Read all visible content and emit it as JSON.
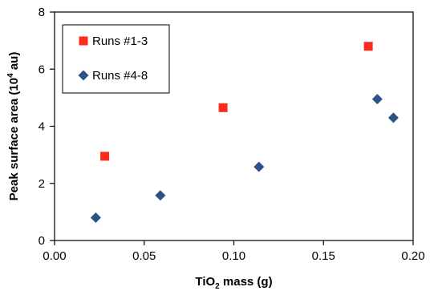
{
  "chart_data": {
    "type": "scatter",
    "xlabel": {
      "base": "TiO",
      "sub": "2",
      "rest": " mass (g)"
    },
    "ylabel": {
      "base": "Peak surface area (10",
      "sup": "4",
      "rest": " au)"
    },
    "xlim": [
      0,
      0.2
    ],
    "ylim": [
      0,
      8
    ],
    "x_ticks": [
      0,
      0.05,
      0.1,
      0.15,
      0.2
    ],
    "x_tick_labels": [
      "0.00",
      "0.05",
      "0.10",
      "0.15",
      "0.20"
    ],
    "y_ticks": [
      0,
      2,
      4,
      6,
      8
    ],
    "y_tick_labels": [
      "0",
      "2",
      "4",
      "6",
      "8"
    ],
    "grid": false,
    "legend_position": "top-left",
    "series": [
      {
        "name": "Runs #1-3",
        "marker": "square",
        "color": "#ff2a1a",
        "points": [
          {
            "x": 0.028,
            "y": 2.95
          },
          {
            "x": 0.094,
            "y": 4.65
          },
          {
            "x": 0.175,
            "y": 6.8
          }
        ]
      },
      {
        "name": "Runs #4-8",
        "marker": "diamond",
        "color": "#2b5388",
        "points": [
          {
            "x": 0.023,
            "y": 0.8
          },
          {
            "x": 0.059,
            "y": 1.58
          },
          {
            "x": 0.114,
            "y": 2.58
          },
          {
            "x": 0.18,
            "y": 4.95
          },
          {
            "x": 0.189,
            "y": 4.3
          }
        ]
      }
    ]
  }
}
